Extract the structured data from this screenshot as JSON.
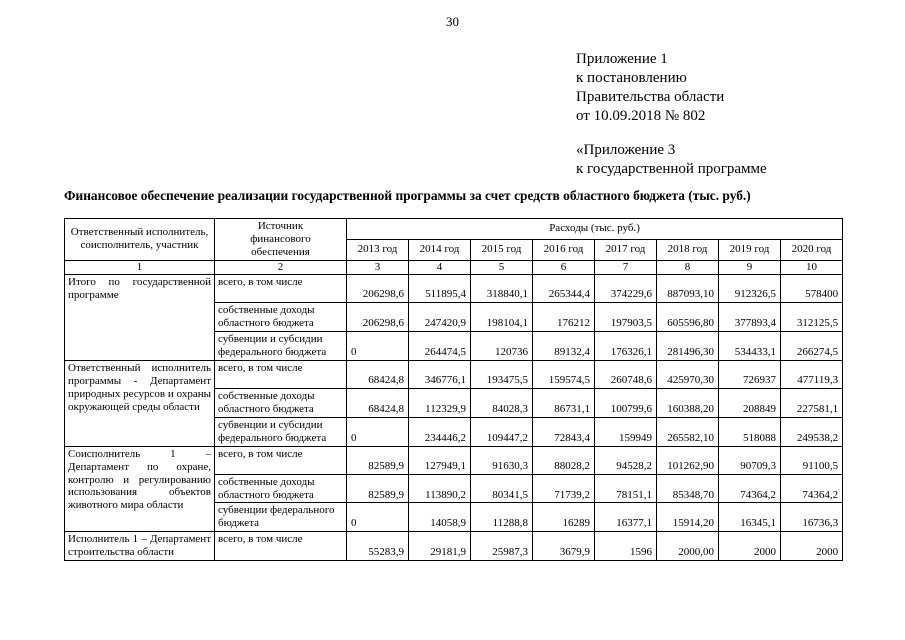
{
  "page": {
    "number": "30"
  },
  "annex": {
    "lines": [
      "Приложение 1",
      "к постановлению",
      "Правительства области",
      "от 10.09.2018 № 802"
    ],
    "lines2": [
      "«Приложение 3",
      "к государственной программе"
    ]
  },
  "title": "Финансовое обеспечение реализации государственной программы за счет средств областного бюджета (тыс. руб.)",
  "table": {
    "headers": {
      "executor": "Ответственный исполнитель, соисполнитель, участник",
      "source": "Источник финансового обеспечения",
      "expenses": "Расходы (тыс. руб.)",
      "years": [
        "2013 год",
        "2014 год",
        "2015 год",
        "2016 год",
        "2017 год",
        "2018 год",
        "2019 год",
        "2020 год"
      ],
      "column_numbers": [
        "1",
        "2",
        "3",
        "4",
        "5",
        "6",
        "7",
        "8",
        "9",
        "10"
      ]
    },
    "groups": [
      {
        "executor": "Итого по государственной программе",
        "rows": [
          {
            "source": "всего, в том числе",
            "values": [
              "206298,6",
              "511895,4",
              "318840,1",
              "265344,4",
              "374229,6",
              "887093,10",
              "912326,5",
              "578400"
            ]
          },
          {
            "source": "собственные доходы областного бюджета",
            "values": [
              "206298,6",
              "247420,9",
              "198104,1",
              "176212",
              "197903,5",
              "605596,80",
              "377893,4",
              "312125,5"
            ]
          },
          {
            "source": "субвенции и субсидии федерального бюджета",
            "values": [
              "0",
              "264474,5",
              "120736",
              "89132,4",
              "176326,1",
              "281496,30",
              "534433,1",
              "266274,5"
            ]
          }
        ]
      },
      {
        "executor": "Ответственный исполнитель программы - Департамент природных ресурсов и охраны окружающей среды области",
        "rows": [
          {
            "source": "всего, в том числе",
            "values": [
              "68424,8",
              "346776,1",
              "193475,5",
              "159574,5",
              "260748,6",
              "425970,30",
              "726937",
              "477119,3"
            ]
          },
          {
            "source": "собственные доходы областного бюджета",
            "values": [
              "68424,8",
              "112329,9",
              "84028,3",
              "86731,1",
              "100799,6",
              "160388,20",
              "208849",
              "227581,1"
            ]
          },
          {
            "source": "субвенции и субсидии федерального бюджета",
            "values": [
              "0",
              "234446,2",
              "109447,2",
              "72843,4",
              "159949",
              "265582,10",
              "518088",
              "249538,2"
            ]
          }
        ]
      },
      {
        "executor": "Соисполнитель 1 – Департамент по охране, контролю и регулированию использования объектов животного мира области",
        "rows": [
          {
            "source": "всего, в том числе",
            "values": [
              "82589,9",
              "127949,1",
              "91630,3",
              "88028,2",
              "94528,2",
              "101262,90",
              "90709,3",
              "91100,5"
            ]
          },
          {
            "source": "собственные доходы областного бюджета",
            "values": [
              "82589,9",
              "113890,2",
              "80341,5",
              "71739,2",
              "78151,1",
              "85348,70",
              "74364,2",
              "74364,2"
            ]
          },
          {
            "source": "субвенции федерального бюджета",
            "values": [
              "0",
              "14058,9",
              "11288,8",
              "16289",
              "16377,1",
              "15914,20",
              "16345,1",
              "16736,3"
            ]
          }
        ]
      },
      {
        "executor": "Исполнитель 1 – Департамент строительства области",
        "rows": [
          {
            "source": "всего, в том числе",
            "values": [
              "55283,9",
              "29181,9",
              "25987,3",
              "3679,9",
              "1596",
              "2000,00",
              "2000",
              "2000"
            ]
          }
        ]
      }
    ]
  }
}
